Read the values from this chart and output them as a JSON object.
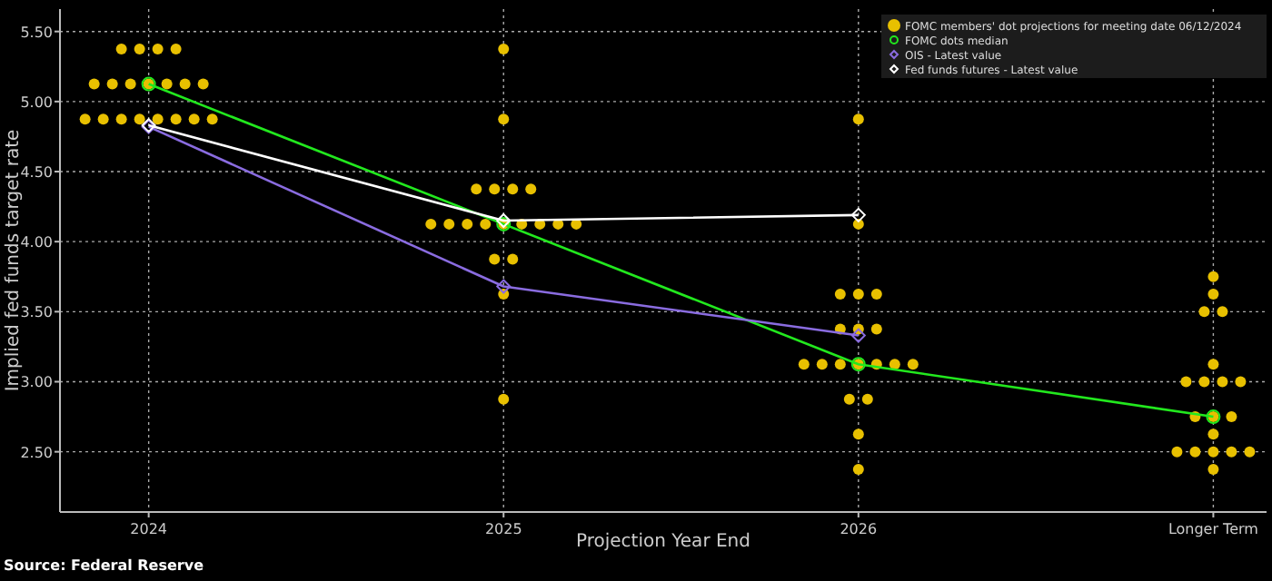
{
  "chart_data": {
    "type": "scatter",
    "xlabel": "Projection Year End",
    "ylabel": "Implied fed funds target rate",
    "annotations": [
      "Source: Federal Reserve"
    ],
    "categories": [
      "2024",
      "2025",
      "2026",
      "Longer Term"
    ],
    "ylim": [
      2.07,
      5.66
    ],
    "yticks": [
      {
        "value": 2.5,
        "label": "2.50"
      },
      {
        "value": 3,
        "label": "3.00"
      },
      {
        "value": 3.5,
        "label": "3.50"
      },
      {
        "value": 4,
        "label": "4.00"
      },
      {
        "value": 4.5,
        "label": "4.50"
      },
      {
        "value": 5,
        "label": "5.00"
      },
      {
        "value": 5.5,
        "label": "5.50"
      }
    ],
    "grid": true,
    "legend": "top right",
    "series": [
      {
        "name": "FOMC members' dot projections for meeting date 06/12/2024",
        "marker": "circle",
        "color": "#e8c000",
        "values": [
          5.375,
          5.375,
          4.875,
          3.75
        ]
      },
      {
        "marker": "circle",
        "color": "#e8c000",
        "values": [
          5.375,
          4.875,
          4.125,
          3.625
        ]
      },
      {
        "marker": "circle",
        "color": "#e8c000",
        "values": [
          5.375,
          4.375,
          3.625,
          3.5
        ]
      },
      {
        "marker": "circle",
        "color": "#e8c000",
        "values": [
          5.375,
          4.375,
          3.625,
          3.5
        ]
      },
      {
        "marker": "circle",
        "color": "#e8c000",
        "values": [
          5.125,
          4.375,
          3.625,
          3.125
        ]
      },
      {
        "marker": "circle",
        "color": "#e8c000",
        "values": [
          5.125,
          4.375,
          3.375,
          3
        ]
      },
      {
        "marker": "circle",
        "color": "#e8c000",
        "values": [
          5.125,
          4.125,
          3.375,
          3
        ]
      },
      {
        "marker": "circle",
        "color": "#e8c000",
        "values": [
          5.125,
          4.125,
          3.375,
          3
        ]
      },
      {
        "marker": "circle",
        "color": "#e8c000",
        "values": [
          5.125,
          4.125,
          3.125,
          3
        ]
      },
      {
        "marker": "circle",
        "color": "#e8c000",
        "values": [
          5.125,
          4.125,
          3.125,
          2.75
        ]
      },
      {
        "marker": "circle",
        "color": "#e8c000",
        "values": [
          5.125,
          4.125,
          3.125,
          2.75
        ]
      },
      {
        "marker": "circle",
        "color": "#e8c000",
        "values": [
          4.875,
          4.125,
          3.125,
          2.75
        ]
      },
      {
        "marker": "circle",
        "color": "#e8c000",
        "values": [
          4.875,
          4.125,
          3.125,
          2.625
        ]
      },
      {
        "marker": "circle",
        "color": "#e8c000",
        "values": [
          4.875,
          4.125,
          3.125,
          2.5
        ]
      },
      {
        "marker": "circle",
        "color": "#e8c000",
        "values": [
          4.875,
          4.125,
          3.125,
          2.5
        ]
      },
      {
        "marker": "circle",
        "color": "#e8c000",
        "values": [
          4.875,
          3.875,
          2.875,
          2.5
        ]
      },
      {
        "marker": "circle",
        "color": "#e8c000",
        "values": [
          4.875,
          3.875,
          2.875,
          2.5
        ]
      },
      {
        "marker": "circle",
        "color": "#e8c000",
        "values": [
          4.875,
          3.625,
          2.625,
          2.5
        ]
      },
      {
        "marker": "circle",
        "color": "#e8c000",
        "values": [
          4.875,
          2.875,
          2.375,
          2.375
        ]
      },
      {
        "name": "FOMC dots median",
        "type": "line",
        "marker": "circle",
        "color": "#22e81e",
        "values": [
          5.125,
          4.125,
          3.125,
          2.75
        ]
      },
      {
        "name": "OIS - Latest value",
        "type": "line",
        "marker": "diamond",
        "color": "#8a6ce0",
        "values": [
          4.82,
          3.68,
          3.33,
          null
        ]
      },
      {
        "name": "Fed funds futures - Latest value",
        "type": "line",
        "marker": "diamond",
        "color": "#ffffff",
        "values": [
          4.83,
          4.15,
          4.19,
          null
        ]
      }
    ]
  }
}
